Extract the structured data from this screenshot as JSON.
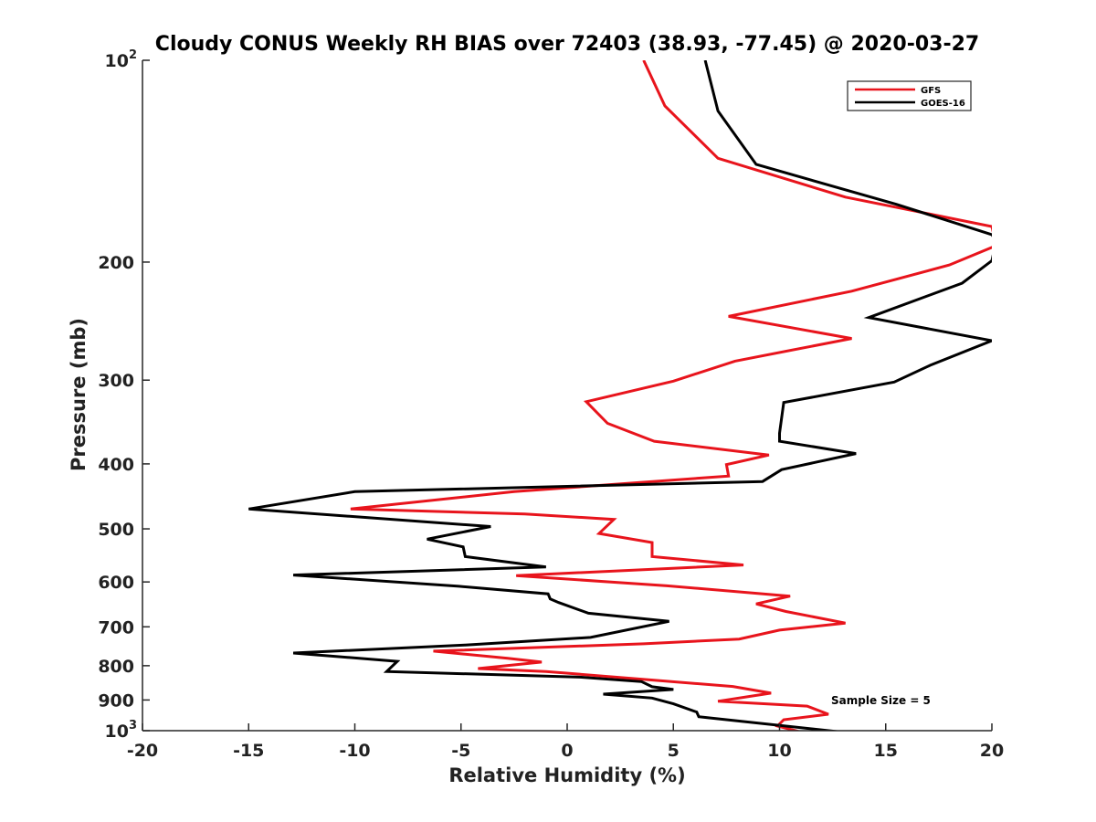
{
  "chart_data": {
    "type": "line",
    "title": "Cloudy CONUS Weekly RH BIAS over 72403 (38.93, -77.45) @ 2020-03-27",
    "xlabel": "Relative Humidity (%)",
    "ylabel": "Pressure (mb)",
    "xlim": [
      -20,
      20
    ],
    "ylim": [
      100,
      1000
    ],
    "yscale": "log",
    "yreversed": true,
    "grid": false,
    "legend_position": "top-right",
    "x_ticks": [
      "-20",
      "-15",
      "-10",
      "-5",
      "0",
      "5",
      "10",
      "15",
      "20"
    ],
    "y_ticks": [
      {
        "label": "10",
        "sup": "2",
        "value": 100
      },
      {
        "label": "200",
        "sup": "",
        "value": 200
      },
      {
        "label": "300",
        "sup": "",
        "value": 300
      },
      {
        "label": "400",
        "sup": "",
        "value": 400
      },
      {
        "label": "500",
        "sup": "",
        "value": 500
      },
      {
        "label": "600",
        "sup": "",
        "value": 600
      },
      {
        "label": "700",
        "sup": "",
        "value": 700
      },
      {
        "label": "800",
        "sup": "",
        "value": 800
      },
      {
        "label": "900",
        "sup": "",
        "value": 900
      },
      {
        "label": "10",
        "sup": "3",
        "value": 1000
      }
    ],
    "series": [
      {
        "name": "GFS",
        "color": "#e8141c",
        "points": [
          [
            3.6,
            100
          ],
          [
            4.6,
            117
          ],
          [
            7.1,
            140
          ],
          [
            13.1,
            160
          ],
          [
            20.0,
            177
          ],
          [
            20.2,
            189
          ],
          [
            18.0,
            202
          ],
          [
            13.4,
            221
          ],
          [
            7.6,
            241
          ],
          [
            13.4,
            260
          ],
          [
            7.9,
            281
          ],
          [
            5.0,
            301
          ],
          [
            0.9,
            323
          ],
          [
            1.9,
            348
          ],
          [
            4.1,
            370
          ],
          [
            9.5,
            388
          ],
          [
            7.5,
            401
          ],
          [
            7.6,
            417
          ],
          [
            -2.5,
            440
          ],
          [
            -10.2,
            467
          ],
          [
            -2.0,
            475
          ],
          [
            2.2,
            484
          ],
          [
            1.5,
            508
          ],
          [
            4.0,
            524
          ],
          [
            4.0,
            550
          ],
          [
            8.3,
            566
          ],
          [
            -2.4,
            587
          ],
          [
            4.7,
            608
          ],
          [
            10.5,
            630
          ],
          [
            8.9,
            647
          ],
          [
            10.3,
            664
          ],
          [
            13.1,
            691
          ],
          [
            10.0,
            708
          ],
          [
            8.1,
            730
          ],
          [
            3.6,
            742
          ],
          [
            -6.3,
            761
          ],
          [
            -2.8,
            780
          ],
          [
            -1.2,
            790
          ],
          [
            -4.2,
            808
          ],
          [
            -1.0,
            816
          ],
          [
            4.1,
            841
          ],
          [
            7.8,
            859
          ],
          [
            9.6,
            879
          ],
          [
            7.1,
            904
          ],
          [
            11.3,
            919
          ],
          [
            12.3,
            945
          ],
          [
            10.2,
            963
          ],
          [
            9.9,
            984
          ],
          [
            11.3,
            1010
          ]
        ]
      },
      {
        "name": "GOES-16",
        "color": "#000000",
        "points": [
          [
            6.5,
            100
          ],
          [
            7.1,
            119
          ],
          [
            8.9,
            143
          ],
          [
            15.5,
            164
          ],
          [
            20.0,
            182
          ],
          [
            20.2,
            186
          ],
          [
            20.0,
            199
          ],
          [
            18.6,
            215
          ],
          [
            14.2,
            242
          ],
          [
            20.0,
            262
          ],
          [
            17.1,
            285
          ],
          [
            15.4,
            302
          ],
          [
            10.2,
            324
          ],
          [
            10.0,
            360
          ],
          [
            10.0,
            370
          ],
          [
            13.6,
            386
          ],
          [
            10.1,
            408
          ],
          [
            9.2,
            425
          ],
          [
            -10.0,
            440
          ],
          [
            -15.0,
            467
          ],
          [
            -3.6,
            496
          ],
          [
            -6.6,
            518
          ],
          [
            -4.9,
            532
          ],
          [
            -4.8,
            550
          ],
          [
            -1.0,
            570
          ],
          [
            -12.9,
            586
          ],
          [
            -5.1,
            609
          ],
          [
            -0.9,
            625
          ],
          [
            -0.8,
            636
          ],
          [
            -0.4,
            644
          ],
          [
            1.0,
            668
          ],
          [
            4.8,
            687
          ],
          [
            1.1,
            726
          ],
          [
            -4.8,
            745
          ],
          [
            -12.9,
            766
          ],
          [
            -8.0,
            788
          ],
          [
            -8.5,
            816
          ],
          [
            0.6,
            832
          ],
          [
            3.5,
            845
          ],
          [
            4.0,
            860
          ],
          [
            5.0,
            868
          ],
          [
            1.7,
            882
          ],
          [
            4.0,
            894
          ],
          [
            5.0,
            912
          ],
          [
            6.1,
            938
          ],
          [
            6.2,
            953
          ],
          [
            6.7,
            957
          ],
          [
            13.6,
            1010
          ]
        ]
      }
    ],
    "legend": [
      {
        "name": "GFS",
        "color": "#e8141c"
      },
      {
        "name": "GOES-16",
        "color": "#000000"
      }
    ],
    "annotations": [
      "Sample Size = 5"
    ]
  }
}
